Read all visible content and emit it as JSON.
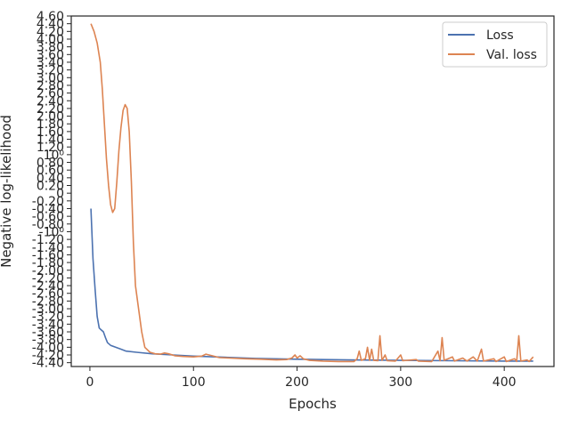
{
  "chart_data": {
    "type": "line",
    "xlabel": "Epochs",
    "ylabel": "Negative log-likelihood",
    "xlim": [
      -18,
      448
    ],
    "ylim": [
      -4.5,
      4.6
    ],
    "grid": false,
    "legend_position": "top-right",
    "x_ticks": [
      {
        "value": 0,
        "label": "0"
      },
      {
        "value": 100,
        "label": "100"
      },
      {
        "value": 200,
        "label": "200"
      },
      {
        "value": 300,
        "label": "300"
      },
      {
        "value": 400,
        "label": "400"
      }
    ],
    "y_ticks": [
      {
        "value": 4.6,
        "label": "4.60"
      },
      {
        "value": 4.4,
        "label": "4.40"
      },
      {
        "value": 4.2,
        "label": "4.20"
      },
      {
        "value": 4.0,
        "label": "4.00"
      },
      {
        "value": 3.8,
        "label": "3.80"
      },
      {
        "value": 3.6,
        "label": "3.60"
      },
      {
        "value": 3.4,
        "label": "3.40"
      },
      {
        "value": 3.2,
        "label": "3.20"
      },
      {
        "value": 3.0,
        "label": "3.00"
      },
      {
        "value": 2.8,
        "label": "2.80"
      },
      {
        "value": 2.6,
        "label": "2.60"
      },
      {
        "value": 2.4,
        "label": "2.40"
      },
      {
        "value": 2.2,
        "label": "2.20"
      },
      {
        "value": 2.0,
        "label": "2.00"
      },
      {
        "value": 1.8,
        "label": "1.80"
      },
      {
        "value": 1.6,
        "label": "1.60"
      },
      {
        "value": 1.4,
        "label": "1.40"
      },
      {
        "value": 1.2,
        "label": "1.20"
      },
      {
        "value": 1.0,
        "label": "10⁰"
      },
      {
        "value": 0.8,
        "label": "0.80"
      },
      {
        "value": 0.6,
        "label": "0.60"
      },
      {
        "value": 0.4,
        "label": "0.40"
      },
      {
        "value": 0.2,
        "label": "0.20"
      },
      {
        "value": 0,
        "label": "0"
      },
      {
        "value": -0.2,
        "label": "-0.20"
      },
      {
        "value": -0.4,
        "label": "-0.40"
      },
      {
        "value": -0.6,
        "label": "-0.60"
      },
      {
        "value": -0.8,
        "label": "-0.80"
      },
      {
        "value": -1.0,
        "label": "-10⁰"
      },
      {
        "value": -1.2,
        "label": "-1.20"
      },
      {
        "value": -1.4,
        "label": "-1.40"
      },
      {
        "value": -1.6,
        "label": "-1.60"
      },
      {
        "value": -1.8,
        "label": "-1.80"
      },
      {
        "value": -2.0,
        "label": "-2.00"
      },
      {
        "value": -2.2,
        "label": "-2.20"
      },
      {
        "value": -2.4,
        "label": "-2.40"
      },
      {
        "value": -2.6,
        "label": "-2.60"
      },
      {
        "value": -2.8,
        "label": "-2.80"
      },
      {
        "value": -3.0,
        "label": "-3.00"
      },
      {
        "value": -3.2,
        "label": "-3.20"
      },
      {
        "value": -3.4,
        "label": "-3.40"
      },
      {
        "value": -3.6,
        "label": "-3.60"
      },
      {
        "value": -3.8,
        "label": "-3.80"
      },
      {
        "value": -4.0,
        "label": "-4.00"
      },
      {
        "value": -4.2,
        "label": "-4.20"
      },
      {
        "value": -4.4,
        "label": "-4.40"
      }
    ],
    "series": [
      {
        "name": "Loss",
        "color": "#4c72b0",
        "points": [
          [
            1,
            -0.4
          ],
          [
            3,
            -1.7
          ],
          [
            5,
            -2.5
          ],
          [
            7,
            -3.2
          ],
          [
            9,
            -3.5
          ],
          [
            11,
            -3.55
          ],
          [
            13,
            -3.6
          ],
          [
            15,
            -3.75
          ],
          [
            17,
            -3.88
          ],
          [
            20,
            -3.95
          ],
          [
            25,
            -4.0
          ],
          [
            30,
            -4.05
          ],
          [
            35,
            -4.1
          ],
          [
            45,
            -4.13
          ],
          [
            60,
            -4.17
          ],
          [
            80,
            -4.2
          ],
          [
            100,
            -4.23
          ],
          [
            130,
            -4.26
          ],
          [
            160,
            -4.29
          ],
          [
            200,
            -4.31
          ],
          [
            250,
            -4.33
          ],
          [
            300,
            -4.34
          ],
          [
            350,
            -4.35
          ],
          [
            400,
            -4.36
          ],
          [
            428,
            -4.36
          ]
        ]
      },
      {
        "name": "Val. loss",
        "color": "#dd8452",
        "points": [
          [
            1,
            4.4
          ],
          [
            4,
            4.2
          ],
          [
            7,
            3.9
          ],
          [
            10,
            3.4
          ],
          [
            12,
            2.7
          ],
          [
            14,
            1.8
          ],
          [
            16,
            0.9
          ],
          [
            18,
            0.2
          ],
          [
            20,
            -0.3
          ],
          [
            22,
            -0.5
          ],
          [
            24,
            -0.4
          ],
          [
            26,
            0.3
          ],
          [
            28,
            1.1
          ],
          [
            30,
            1.7
          ],
          [
            32,
            2.15
          ],
          [
            34,
            2.3
          ],
          [
            36,
            2.2
          ],
          [
            38,
            1.6
          ],
          [
            40,
            0.3
          ],
          [
            42,
            -1.3
          ],
          [
            44,
            -2.4
          ],
          [
            47,
            -3.0
          ],
          [
            50,
            -3.6
          ],
          [
            53,
            -4.0
          ],
          [
            58,
            -4.13
          ],
          [
            63,
            -4.17
          ],
          [
            68,
            -4.18
          ],
          [
            72,
            -4.15
          ],
          [
            76,
            -4.17
          ],
          [
            82,
            -4.22
          ],
          [
            90,
            -4.24
          ],
          [
            100,
            -4.25
          ],
          [
            108,
            -4.23
          ],
          [
            112,
            -4.18
          ],
          [
            118,
            -4.22
          ],
          [
            125,
            -4.27
          ],
          [
            135,
            -4.28
          ],
          [
            150,
            -4.3
          ],
          [
            165,
            -4.31
          ],
          [
            180,
            -4.33
          ],
          [
            190,
            -4.32
          ],
          [
            195,
            -4.28
          ],
          [
            198,
            -4.2
          ],
          [
            200,
            -4.28
          ],
          [
            203,
            -4.22
          ],
          [
            206,
            -4.3
          ],
          [
            212,
            -4.34
          ],
          [
            225,
            -4.36
          ],
          [
            240,
            -4.37
          ],
          [
            255,
            -4.37
          ],
          [
            258,
            -4.3
          ],
          [
            260,
            -4.1
          ],
          [
            262,
            -4.34
          ],
          [
            266,
            -4.3
          ],
          [
            268,
            -4.0
          ],
          [
            270,
            -4.34
          ],
          [
            272,
            -4.05
          ],
          [
            274,
            -4.34
          ],
          [
            278,
            -4.35
          ],
          [
            280,
            -3.7
          ],
          [
            282,
            -4.34
          ],
          [
            285,
            -4.2
          ],
          [
            287,
            -4.35
          ],
          [
            295,
            -4.36
          ],
          [
            300,
            -4.2
          ],
          [
            302,
            -4.35
          ],
          [
            315,
            -4.32
          ],
          [
            317,
            -4.36
          ],
          [
            330,
            -4.37
          ],
          [
            336,
            -4.1
          ],
          [
            338,
            -4.35
          ],
          [
            340,
            -3.75
          ],
          [
            342,
            -4.34
          ],
          [
            350,
            -4.25
          ],
          [
            352,
            -4.36
          ],
          [
            360,
            -4.28
          ],
          [
            364,
            -4.36
          ],
          [
            370,
            -4.25
          ],
          [
            374,
            -4.36
          ],
          [
            378,
            -4.05
          ],
          [
            380,
            -4.36
          ],
          [
            390,
            -4.3
          ],
          [
            392,
            -4.37
          ],
          [
            400,
            -4.25
          ],
          [
            402,
            -4.37
          ],
          [
            410,
            -4.3
          ],
          [
            412,
            -4.37
          ],
          [
            414,
            -3.7
          ],
          [
            416,
            -4.36
          ],
          [
            422,
            -4.33
          ],
          [
            424,
            -4.37
          ],
          [
            428,
            -4.25
          ]
        ]
      }
    ]
  }
}
